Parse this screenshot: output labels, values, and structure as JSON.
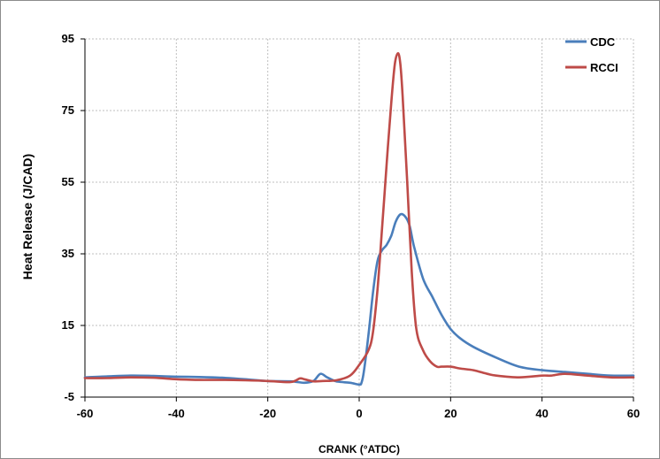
{
  "chart_data": {
    "type": "line",
    "title": "",
    "xlabel": "CRANK (°ATDC)",
    "ylabel": "Heat Release (J/CAD)",
    "xlim": [
      -60,
      60
    ],
    "ylim": [
      -5,
      95
    ],
    "xticks": [
      -60,
      -40,
      -20,
      0,
      20,
      40,
      60
    ],
    "yticks": [
      -5,
      15,
      35,
      55,
      75,
      95
    ],
    "grid": true,
    "legend": "top-right",
    "series": [
      {
        "name": "CDC",
        "color": "#4a7ebb",
        "x": [
          -60,
          -55,
          -50,
          -45,
          -40,
          -35,
          -30,
          -25,
          -20,
          -15,
          -12,
          -10,
          -8.5,
          -7,
          -5,
          -2,
          0,
          0.5,
          1,
          2,
          3,
          4,
          5,
          6,
          7,
          8,
          9,
          10,
          11,
          12,
          14,
          16,
          18,
          20,
          22,
          25,
          30,
          35,
          40,
          45,
          50,
          55,
          60
        ],
        "y": [
          0.5,
          0.8,
          1.0,
          0.9,
          0.7,
          0.6,
          0.4,
          0.0,
          -0.5,
          -0.6,
          -1.0,
          -0.5,
          1.5,
          0.5,
          -0.6,
          -1.0,
          -1.5,
          -1.0,
          2.0,
          12.0,
          24.0,
          33.0,
          36.0,
          37.5,
          40.0,
          44.0,
          46.0,
          45.5,
          43.0,
          37.0,
          28.0,
          23.0,
          18.0,
          14.0,
          11.5,
          9.0,
          6.0,
          3.5,
          2.5,
          2.0,
          1.5,
          1.0,
          1.0
        ]
      },
      {
        "name": "RCCI",
        "color": "#be4b48",
        "x": [
          -60,
          -55,
          -50,
          -45,
          -40,
          -35,
          -30,
          -25,
          -20,
          -15,
          -13,
          -12,
          -10,
          -8,
          -5,
          -2,
          0,
          2,
          3,
          4,
          5,
          6,
          7,
          7.8,
          8.5,
          9,
          9.5,
          10.5,
          11.5,
          12.5,
          14,
          15.5,
          17,
          18,
          20,
          22,
          25,
          28,
          30,
          35,
          40,
          42,
          45,
          50,
          55,
          60
        ],
        "y": [
          0.3,
          0.3,
          0.5,
          0.4,
          0.0,
          -0.2,
          -0.2,
          -0.3,
          -0.5,
          -0.8,
          0.2,
          0.0,
          -0.6,
          -0.5,
          -0.3,
          1.0,
          4.0,
          8.0,
          13.0,
          25.0,
          42.0,
          60.0,
          77.0,
          88.0,
          91.0,
          88.0,
          79.0,
          55.0,
          30.0,
          14.0,
          8.0,
          5.0,
          3.5,
          3.5,
          3.5,
          3.0,
          2.5,
          1.5,
          1.0,
          0.5,
          1.0,
          1.0,
          1.5,
          1.0,
          0.5,
          0.5
        ]
      }
    ]
  }
}
